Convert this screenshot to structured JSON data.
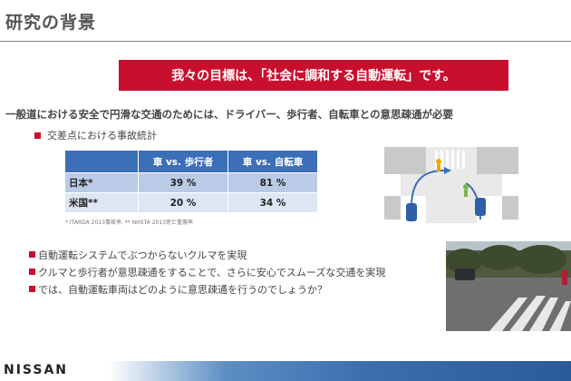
{
  "slide": {
    "title": "研究の背景",
    "goal": "我々の目標は、「社会に調和する自動運転」です。",
    "intro": "一般道における安全で円滑な交通のためには、ドライバー、歩行者、自転車との意思疎通が必要",
    "stats_label": "交差点における事故統計"
  },
  "table": {
    "headers": [
      "",
      "車 vs. 歩行者",
      "車 vs. 自転車"
    ],
    "rows": [
      {
        "label": "日本*",
        "values": [
          "39 %",
          "81 %"
        ]
      },
      {
        "label": "米国**",
        "values": [
          "20 %",
          "34 %"
        ]
      }
    ]
  },
  "footnote": "* ITARDA 2013事故率, ** NHSTA 2013死亡重傷率",
  "bullets": [
    "自動運転システムでぶつからないクルマを実現",
    "クルマと歩行者が意思疎通をすることで、さらに安心でスムーズな交通を実現",
    "では、自動運転車両はどのように意思疎通を行うのでしょうか？"
  ],
  "logo": "NISSAN",
  "colors": {
    "accent": "#c8102e",
    "table_header": "#3b6fb8",
    "row_dark": "#b9cbe7",
    "row_light": "#dde6f3"
  }
}
